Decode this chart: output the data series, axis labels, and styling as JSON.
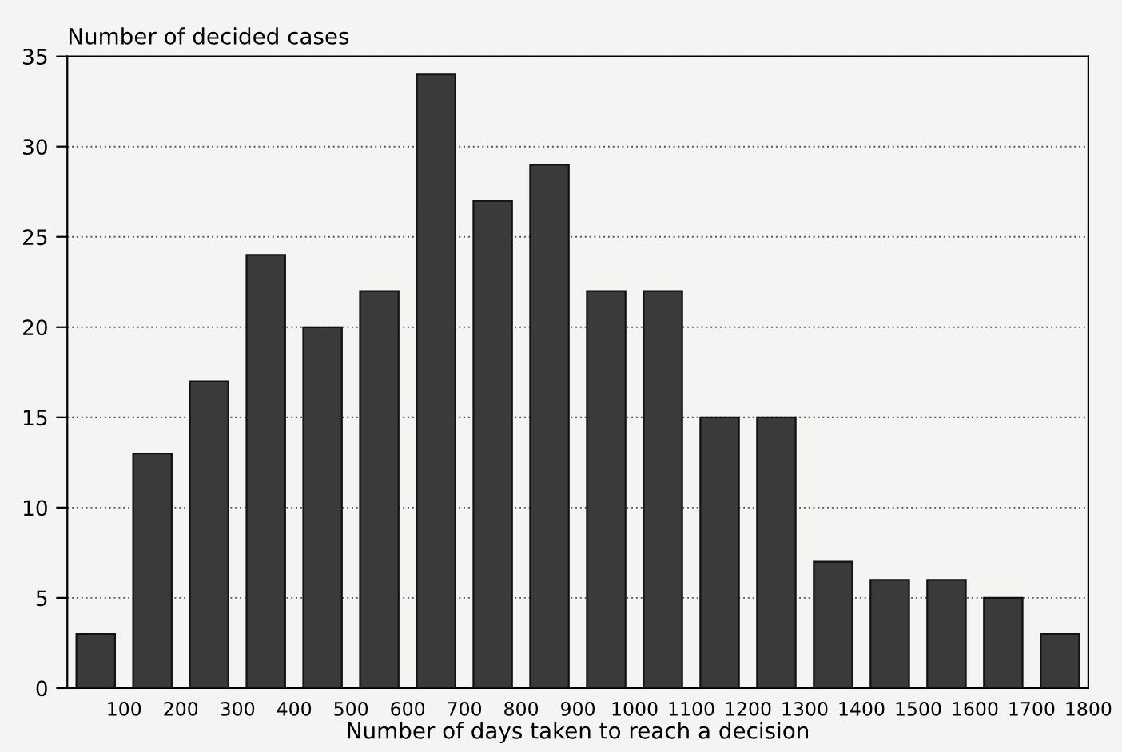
{
  "chart_data": {
    "type": "histogram",
    "ylabel": "Number of decided cases",
    "xlabel": "Number of days taken to reach a decision",
    "bins": [
      0,
      100,
      200,
      300,
      400,
      500,
      600,
      700,
      800,
      900,
      1000,
      1100,
      1200,
      1300,
      1400,
      1500,
      1600,
      1700,
      1800
    ],
    "values": [
      3,
      13,
      17,
      24,
      20,
      22,
      34,
      27,
      29,
      22,
      22,
      15,
      15,
      7,
      6,
      6,
      5,
      3
    ],
    "color": "#3a3a3a",
    "xlim": [
      0,
      1800
    ],
    "xticks": [
      100,
      200,
      300,
      400,
      500,
      600,
      700,
      800,
      900,
      1000,
      1100,
      1200,
      1300,
      1400,
      1500,
      1600,
      1700,
      1800
    ],
    "ylim": [
      0,
      35
    ],
    "yticks": [
      0,
      5,
      10,
      15,
      20,
      25,
      30,
      35
    ],
    "grid": "y"
  }
}
